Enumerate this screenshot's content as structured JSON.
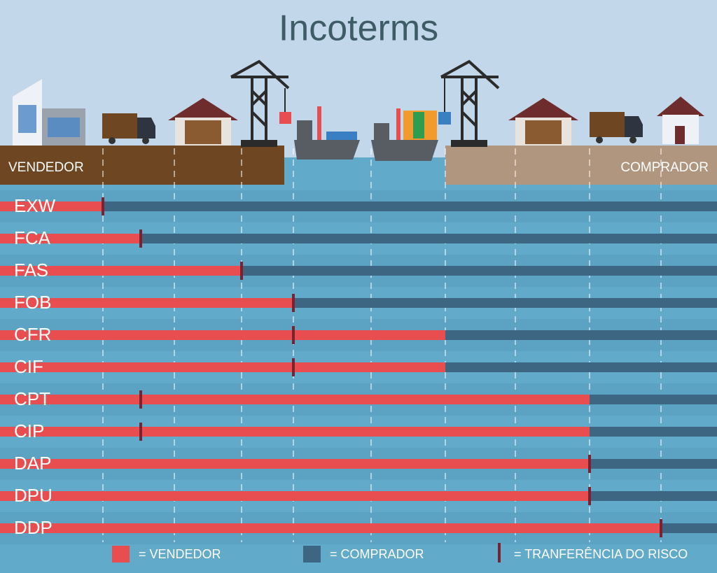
{
  "title": "Incoterms",
  "seller_label": "VENDEDOR",
  "buyer_label": "COMPRADOR",
  "rows": [
    "EXW",
    "FCA",
    "FAS",
    "FOB",
    "CFR",
    "CIF",
    "CPT",
    "CIP",
    "DAP",
    "DPU",
    "DDP"
  ],
  "legend": {
    "seller": "= VENDEDOR",
    "buyer": "= COMPRADOR",
    "risk": "= TRANFERÊNCIA DO RISCO"
  }
}
